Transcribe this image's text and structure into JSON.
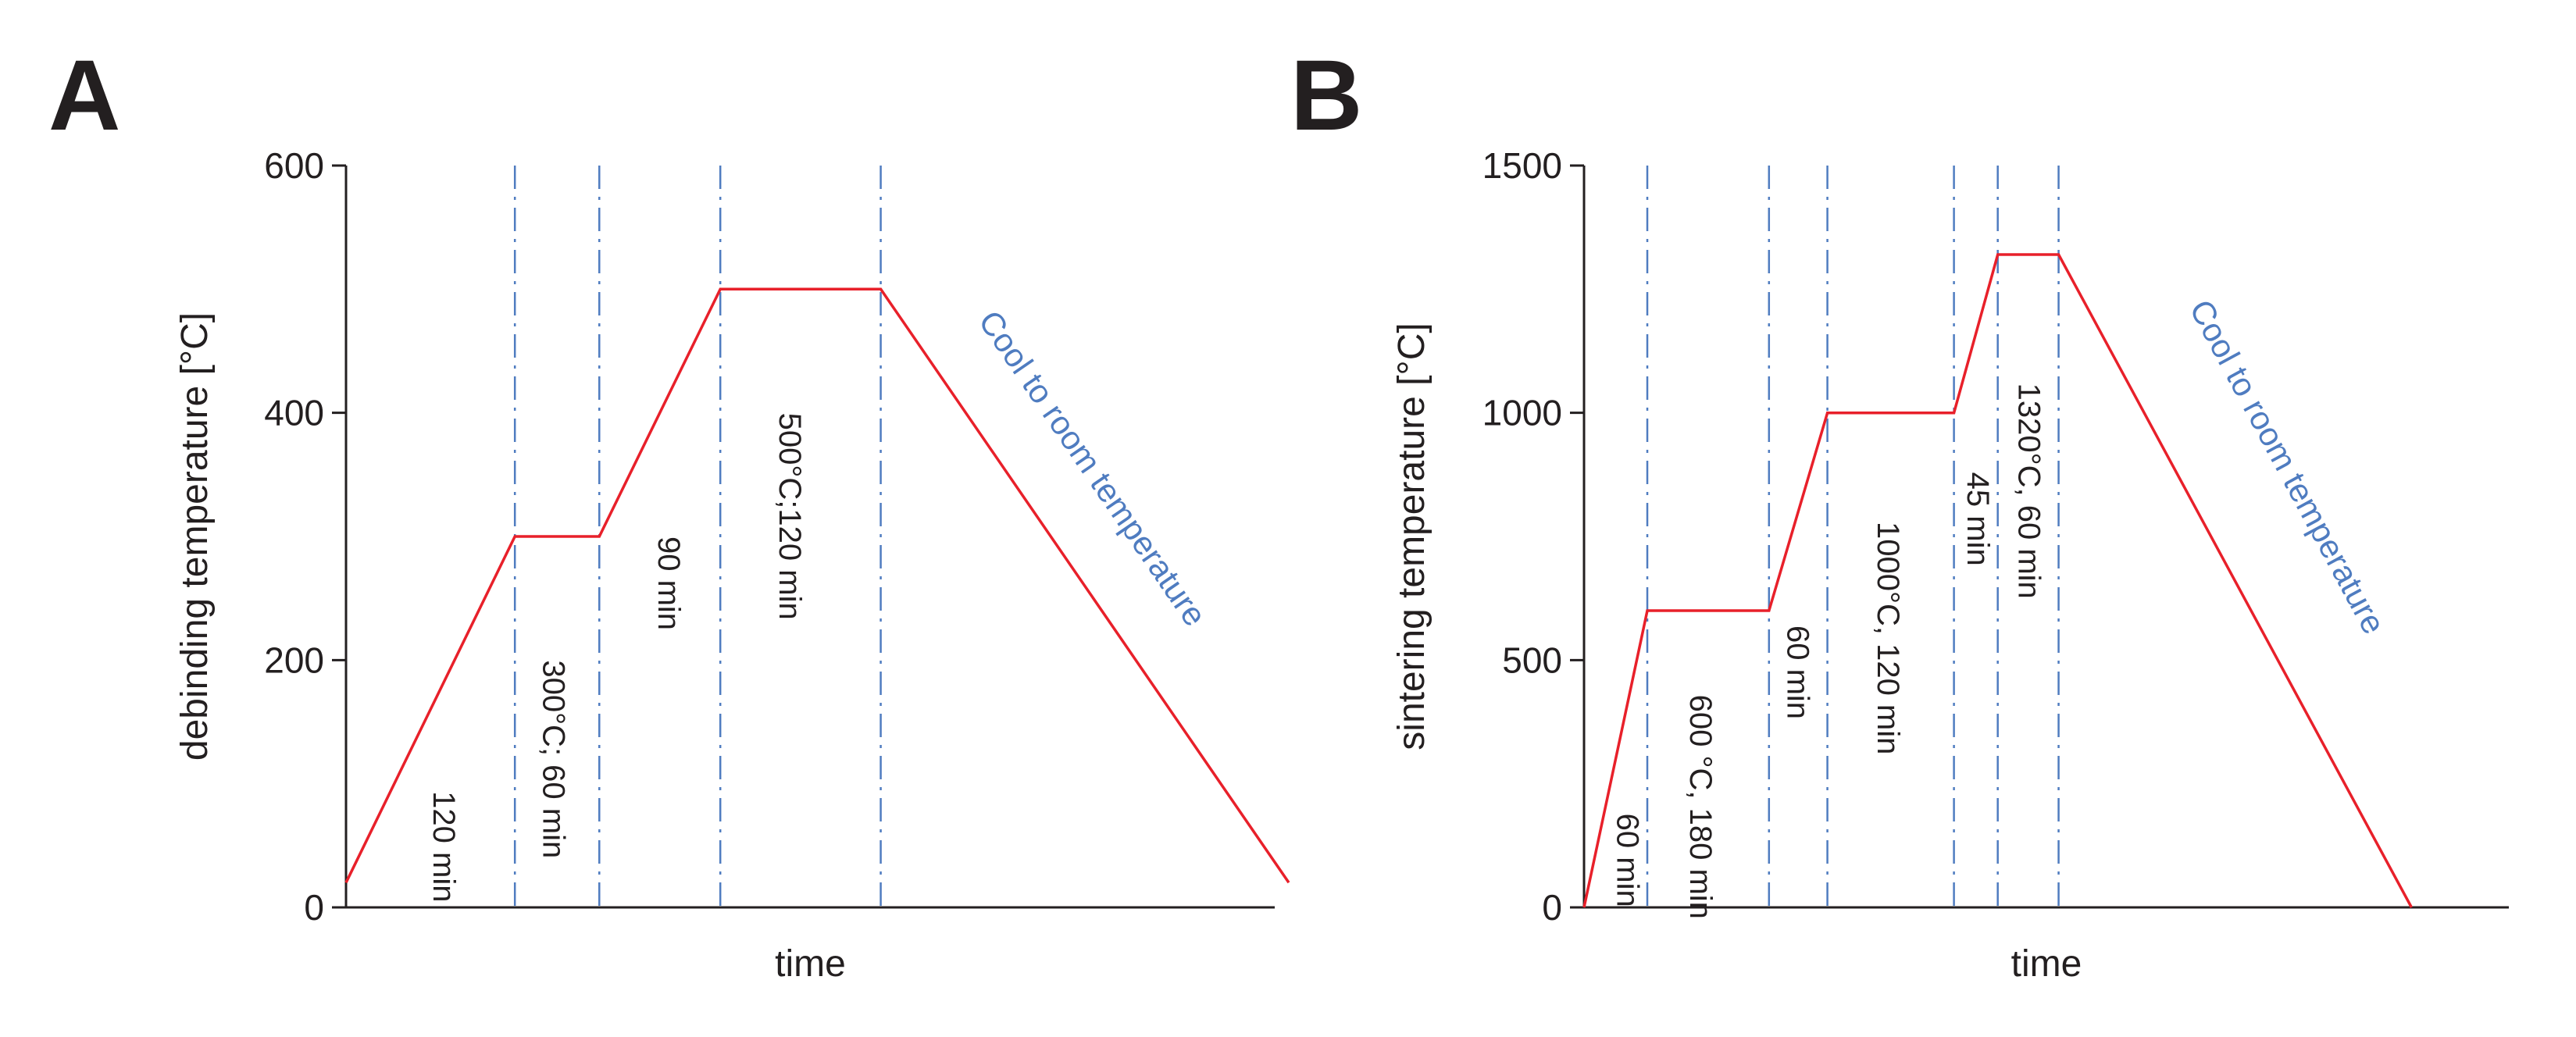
{
  "colors": {
    "profile": "#e8202a",
    "guide": "#4f7cc0",
    "axis": "#231f20",
    "text": "#231f20",
    "cool_text": "#4f7cc0"
  },
  "chart_data": [
    {
      "type": "line",
      "panel_label": "A",
      "xlabel": "time",
      "ylabel": "debinding temperature [°C]",
      "ylim": [
        0,
        600
      ],
      "xlim": [
        0,
        330
      ],
      "yticks": [
        0,
        200,
        400,
        600
      ],
      "x": [
        0,
        60,
        90,
        133,
        190,
        335
      ],
      "y": [
        20,
        300,
        300,
        500,
        500,
        20
      ],
      "guides_x": [
        60,
        90,
        133,
        190
      ],
      "segment_labels": [
        {
          "text": "120 min",
          "x": 34,
          "y": 94
        },
        {
          "text": "300°C; 60 min",
          "x": 73,
          "y": 200
        },
        {
          "text": "90 min",
          "x": 114,
          "y": 300
        },
        {
          "text": "500°C;120 min",
          "x": 157,
          "y": 400
        }
      ],
      "cool_label": {
        "text": "Cool to room temperature",
        "x": 262,
        "y": 350
      }
    },
    {
      "type": "line",
      "panel_label": "B",
      "xlabel": "time",
      "ylabel": "sintering temperature [°C]",
      "ylim": [
        0,
        1500
      ],
      "xlim": [
        0,
        380
      ],
      "yticks": [
        0,
        500,
        1000,
        1500
      ],
      "x": [
        0,
        26,
        76,
        100,
        152,
        170,
        195,
        340
      ],
      "y": [
        0,
        600,
        600,
        1000,
        1000,
        1320,
        1320,
        0
      ],
      "guides_x": [
        26,
        76,
        100,
        152,
        170,
        195
      ],
      "segment_labels": [
        {
          "text": "60 min",
          "x": 17,
          "y": 190
        },
        {
          "text": "600 °C, 180 min",
          "x": 47,
          "y": 430
        },
        {
          "text": "60 min",
          "x": 87,
          "y": 570
        },
        {
          "text": "1000°C, 120 min",
          "x": 124,
          "y": 780
        },
        {
          "text": "45 min",
          "x": 161,
          "y": 880
        },
        {
          "text": "1320°C, 60 min",
          "x": 182,
          "y": 1060
        }
      ],
      "cool_label": {
        "text": "Cool to room temperature",
        "x": 285,
        "y": 880
      }
    }
  ]
}
